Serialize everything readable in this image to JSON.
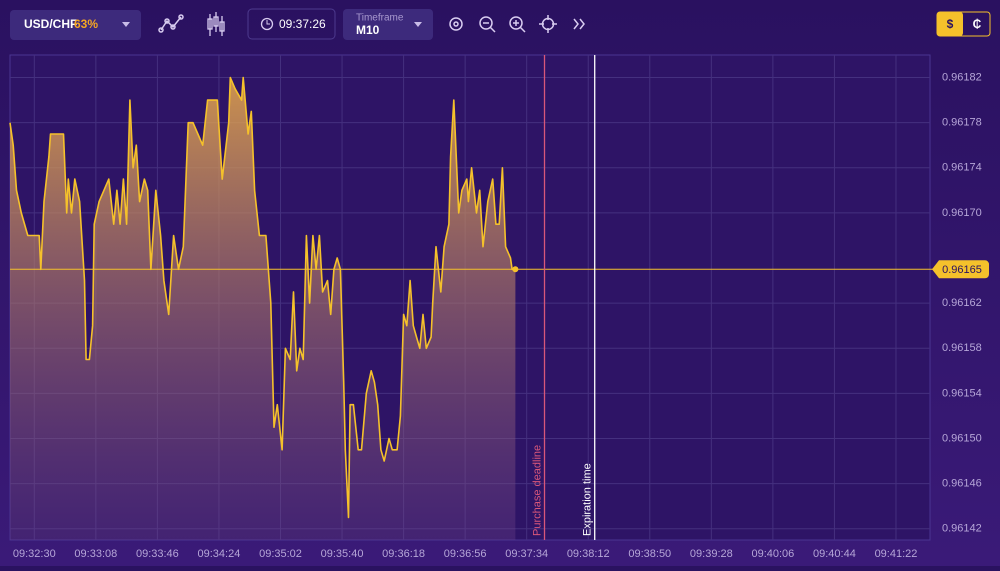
{
  "toolbar": {
    "asset": "USD/CHF",
    "payout": "63%",
    "clock": "09:37:26",
    "timeframe_label": "Timeframe",
    "timeframe": "M10",
    "currency_real": "$",
    "currency_demo": "₵"
  },
  "chart_data": {
    "type": "area",
    "color": "#f5c12b",
    "grid": true,
    "x": [
      "09:32:15",
      "09:32:17",
      "09:32:19",
      "09:32:22",
      "09:32:26",
      "09:32:33",
      "09:32:34",
      "09:32:36",
      "09:32:39",
      "09:32:40",
      "09:32:48",
      "09:32:50",
      "09:32:51",
      "09:32:53",
      "09:32:55",
      "09:32:58",
      "09:33:01",
      "09:33:02",
      "09:33:04",
      "09:33:06",
      "09:33:07",
      "09:33:10",
      "09:33:16",
      "09:33:19",
      "09:33:21",
      "09:33:23",
      "09:33:25",
      "09:33:27",
      "09:33:29",
      "09:33:31",
      "09:33:33",
      "09:33:35",
      "09:33:38",
      "09:33:40",
      "09:33:42",
      "09:33:45",
      "09:33:48",
      "09:33:50",
      "09:33:53",
      "09:33:56",
      "09:33:59",
      "09:34:02",
      "09:34:05",
      "09:34:08",
      "09:34:11",
      "09:34:14",
      "09:34:17",
      "09:34:20",
      "09:34:23",
      "09:34:26",
      "09:34:30",
      "09:34:31",
      "09:34:34",
      "09:34:38",
      "09:34:39",
      "09:34:42",
      "09:34:44",
      "09:34:46",
      "09:34:49",
      "09:34:53",
      "09:34:56",
      "09:34:58",
      "09:35:00",
      "09:35:03",
      "09:35:05",
      "09:35:08",
      "09:35:10",
      "09:35:12",
      "09:35:14",
      "09:35:16",
      "09:35:18",
      "09:35:20",
      "09:35:22",
      "09:35:24",
      "09:35:26",
      "09:35:28",
      "09:35:31",
      "09:35:33",
      "09:35:35",
      "09:35:37",
      "09:35:39",
      "09:35:41",
      "09:35:42",
      "09:35:44",
      "09:35:45",
      "09:35:47",
      "09:35:50",
      "09:35:52",
      "09:35:55",
      "09:35:58",
      "09:36:00",
      "09:36:02",
      "09:36:04",
      "09:36:06",
      "09:36:09",
      "09:36:11",
      "09:36:14",
      "09:36:16",
      "09:36:18",
      "09:36:20",
      "09:36:22",
      "09:36:24",
      "09:36:26",
      "09:36:28",
      "09:36:30",
      "09:36:32",
      "09:36:35",
      "09:36:36",
      "09:36:38",
      "09:36:41",
      "09:36:43",
      "09:36:46",
      "09:36:47",
      "09:36:49",
      "09:36:52",
      "09:36:54",
      "09:36:57",
      "09:36:58",
      "09:37:00",
      "09:37:03",
      "09:37:05",
      "09:37:07",
      "09:37:10",
      "09:37:13",
      "09:37:15",
      "09:37:17",
      "09:37:19",
      "09:37:21",
      "09:37:24",
      "09:37:25",
      "09:37:27"
    ],
    "values": [
      0.96178,
      0.96176,
      0.96172,
      0.9617,
      0.96168,
      0.96168,
      0.96165,
      0.96171,
      0.96175,
      0.96177,
      0.96177,
      0.9617,
      0.96173,
      0.9617,
      0.96173,
      0.96171,
      0.96164,
      0.96157,
      0.96157,
      0.9616,
      0.96169,
      0.96171,
      0.96173,
      0.96169,
      0.96172,
      0.96169,
      0.96173,
      0.96169,
      0.9618,
      0.96174,
      0.96176,
      0.96171,
      0.96173,
      0.96172,
      0.96165,
      0.96172,
      0.96168,
      0.96164,
      0.96161,
      0.96168,
      0.96165,
      0.96167,
      0.96178,
      0.96178,
      0.96177,
      0.96176,
      0.9618,
      0.9618,
      0.9618,
      0.96173,
      0.96178,
      0.96182,
      0.96181,
      0.9618,
      0.96182,
      0.96177,
      0.96179,
      0.96172,
      0.96168,
      0.96168,
      0.96162,
      0.96151,
      0.96153,
      0.96149,
      0.96158,
      0.96157,
      0.96163,
      0.96156,
      0.96158,
      0.96157,
      0.96168,
      0.96162,
      0.96168,
      0.96165,
      0.96168,
      0.96163,
      0.96164,
      0.96161,
      0.96165,
      0.96166,
      0.96165,
      0.96155,
      0.96149,
      0.96143,
      0.96153,
      0.96153,
      0.96149,
      0.96149,
      0.96154,
      0.96156,
      0.96155,
      0.96153,
      0.96149,
      0.96148,
      0.9615,
      0.96149,
      0.96149,
      0.96152,
      0.96161,
      0.9616,
      0.96164,
      0.9616,
      0.96159,
      0.96158,
      0.96161,
      0.96158,
      0.96159,
      0.96162,
      0.96167,
      0.96163,
      0.96167,
      0.96169,
      0.96175,
      0.9618,
      0.9617,
      0.96172,
      0.96173,
      0.96171,
      0.96174,
      0.9617,
      0.96172,
      0.96167,
      0.96171,
      0.96173,
      0.96169,
      0.96169,
      0.96174,
      0.96167,
      0.96166,
      0.96165,
      0.96165
    ],
    "current_price": 0.96165,
    "xlim": [
      "09:32:15",
      "09:41:43"
    ],
    "xticks": [
      "09:32:30",
      "09:33:08",
      "09:33:46",
      "09:34:24",
      "09:35:02",
      "09:35:40",
      "09:36:18",
      "09:36:56",
      "09:37:34",
      "09:38:12",
      "09:38:50",
      "09:39:28",
      "09:40:06",
      "09:40:44",
      "09:41:22"
    ],
    "ylim": [
      0.96141,
      0.96184
    ],
    "yticks": [
      0.96142,
      0.96146,
      {
        "value": 0.9615,
        "label": "0.96150"
      },
      0.96154,
      0.96158,
      0.96162,
      {
        "value": 0.9617,
        "label": "0.96170"
      },
      0.96174,
      0.96178,
      0.96182
    ],
    "annotations": [
      {
        "label": "Purchase deadline",
        "x": "09:37:45",
        "color": "#d9577a"
      },
      {
        "label": "Expiration time",
        "x": "09:38:16",
        "color": "#ffffff"
      }
    ]
  }
}
